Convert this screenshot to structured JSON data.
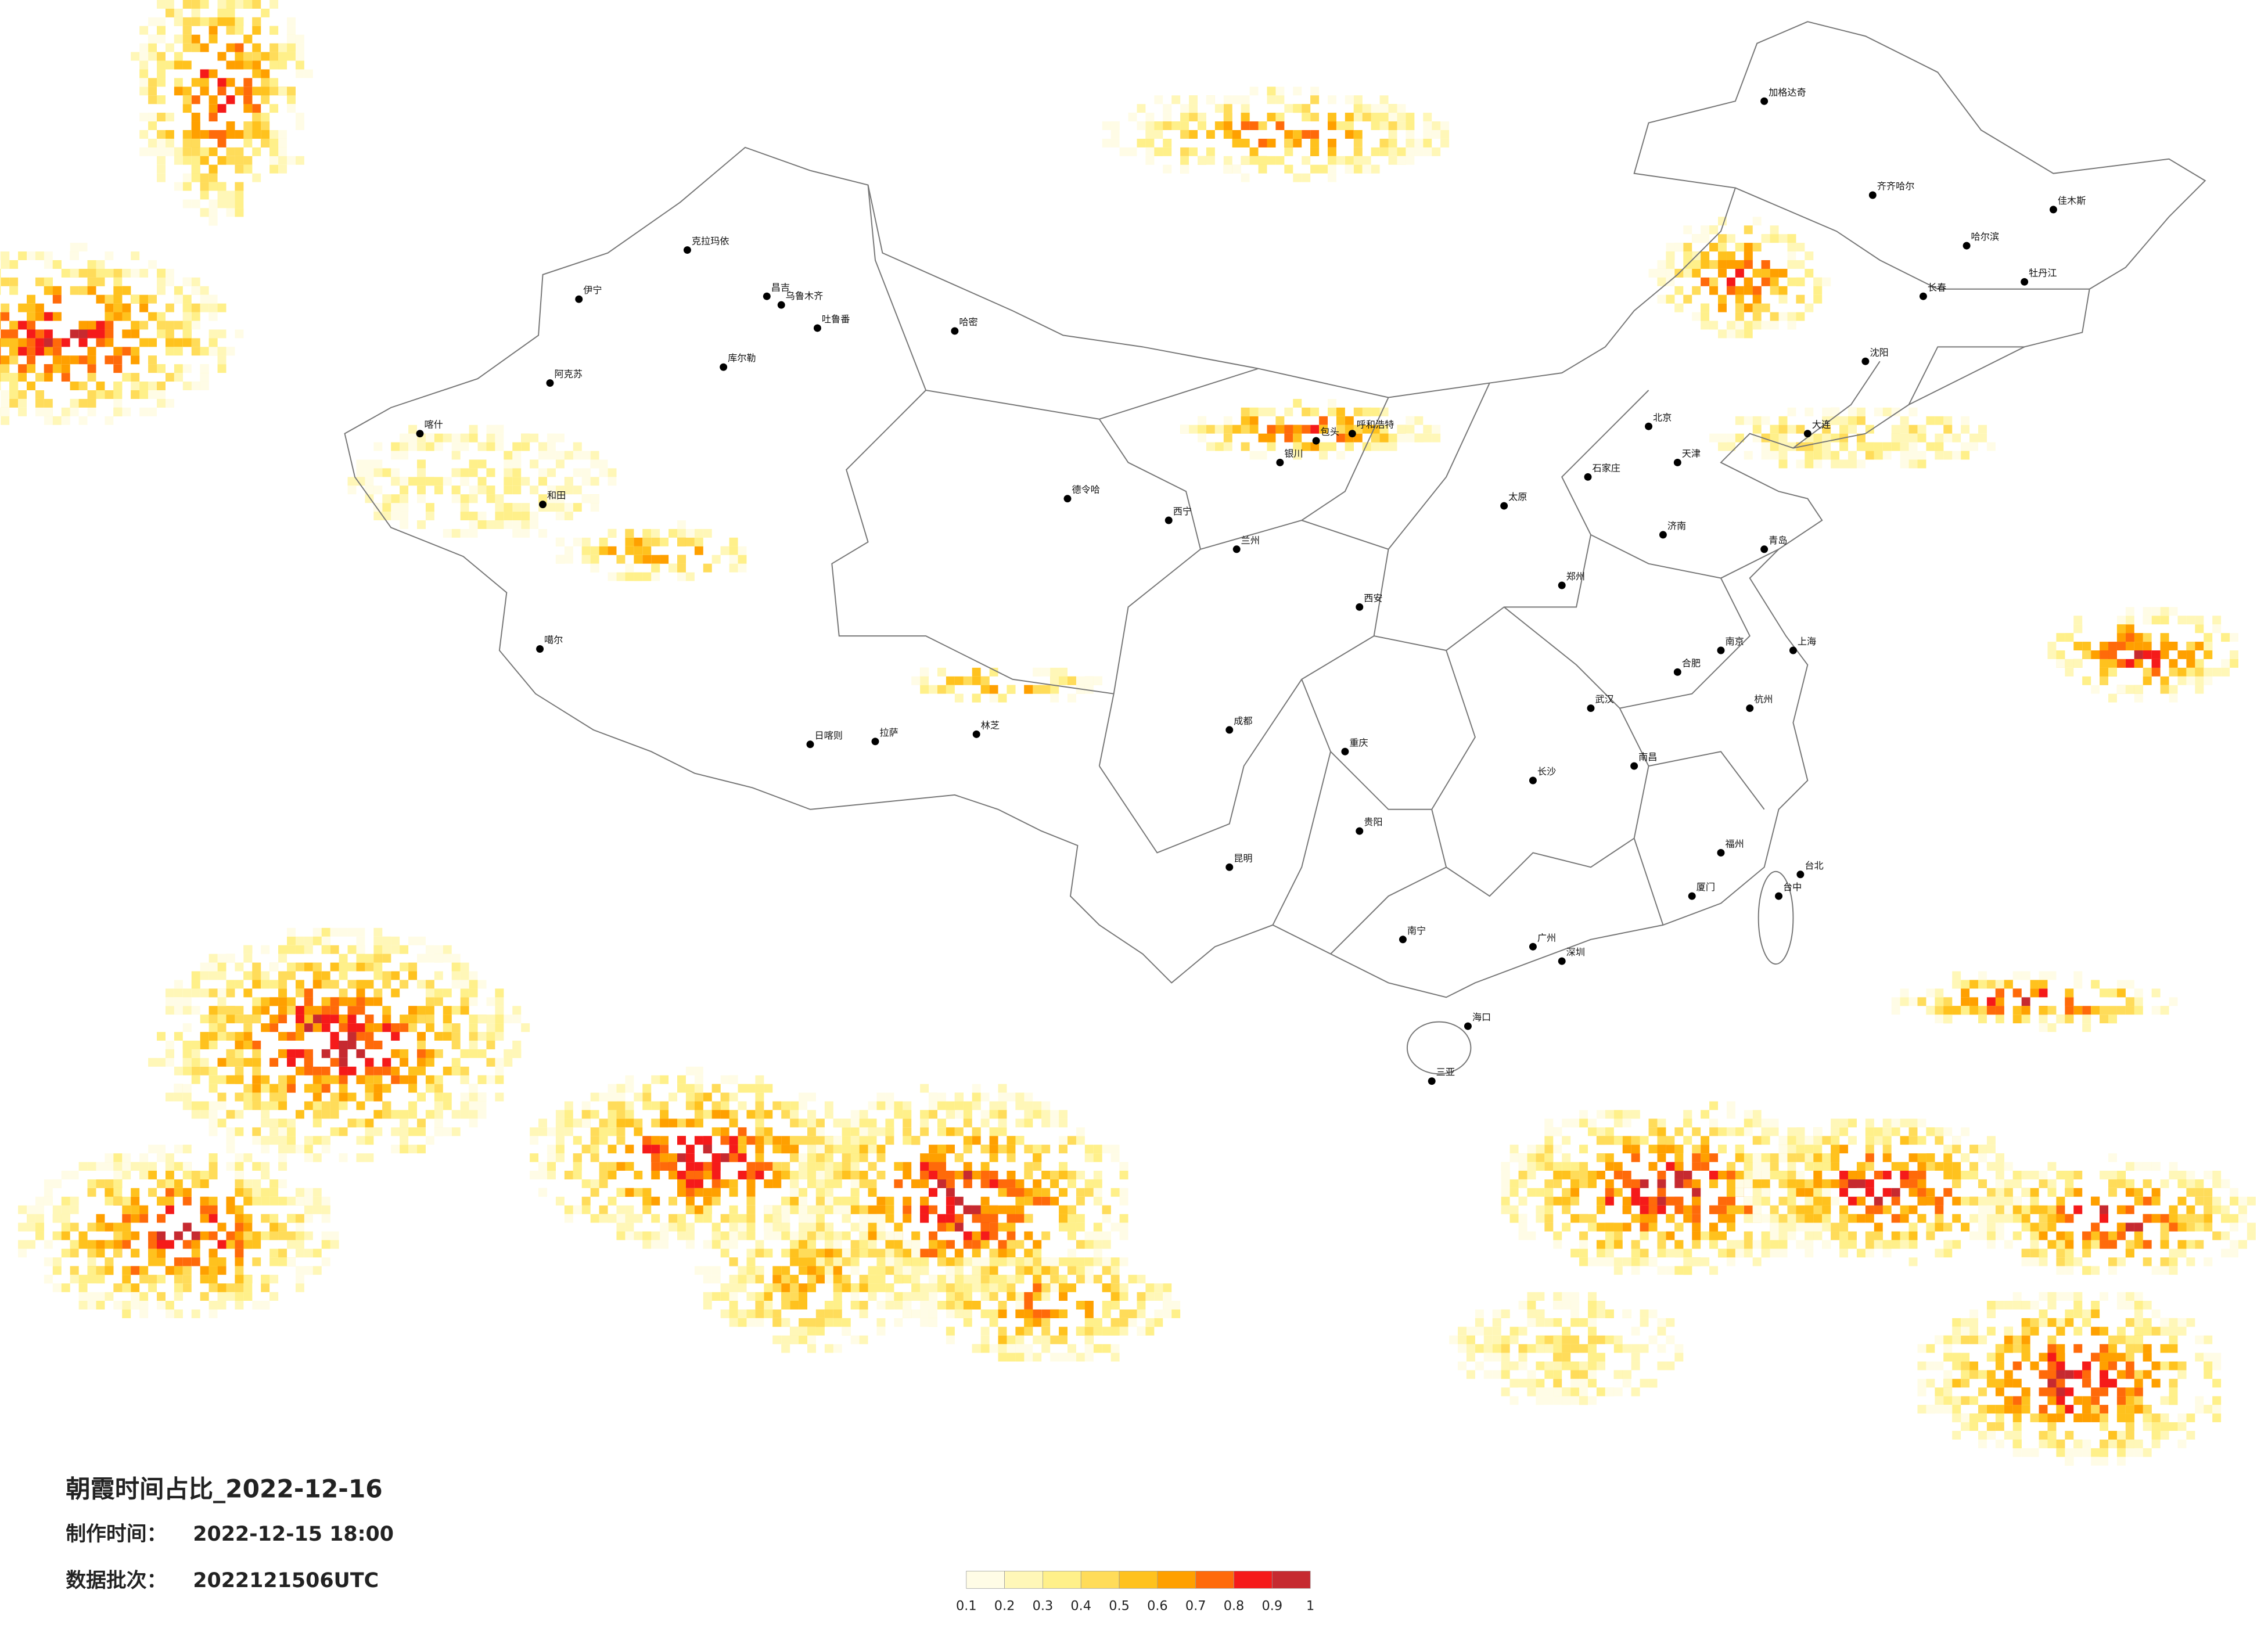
{
  "title": "朝霞时间占比_2022-12-16",
  "made_label": "制作时间：",
  "made_time": "2022-12-15 18:00",
  "batch_label": "数据批次：",
  "batch": "2022121506UTC",
  "legend": {
    "ticks": [
      0.1,
      0.2,
      0.3,
      0.4,
      0.5,
      0.6,
      0.7,
      0.8,
      0.9,
      1
    ],
    "colors": [
      "#fffce6",
      "#fff7b8",
      "#fff08a",
      "#ffdc5a",
      "#ffc21e",
      "#ffa000",
      "#ff6a0a",
      "#f51a1a",
      "#c62a30"
    ]
  },
  "cities": [
    "克拉玛依",
    "昌吉",
    "乌鲁木齐",
    "吐鲁番",
    "哈密",
    "伊宁",
    "库尔勒",
    "阿克苏",
    "喀什",
    "和田",
    "噶尔",
    "日喀则",
    "拉萨",
    "林芝",
    "德令哈",
    "西宁",
    "兰州",
    "银川",
    "呼和浩特",
    "包头",
    "北京",
    "天津",
    "石家庄",
    "太原",
    "济南",
    "青岛",
    "郑州",
    "西安",
    "成都",
    "重庆",
    "贵阳",
    "昆明",
    "南宁",
    "广州",
    "深圳",
    "长沙",
    "武汉",
    "南昌",
    "合肥",
    "南京",
    "上海",
    "杭州",
    "福州",
    "厦门",
    "台北",
    "台中",
    "海口",
    "三亚",
    "哈尔滨",
    "长春",
    "沈阳",
    "大连",
    "齐齐哈尔",
    "加格达奇",
    "佳木斯",
    "牡丹江"
  ]
}
